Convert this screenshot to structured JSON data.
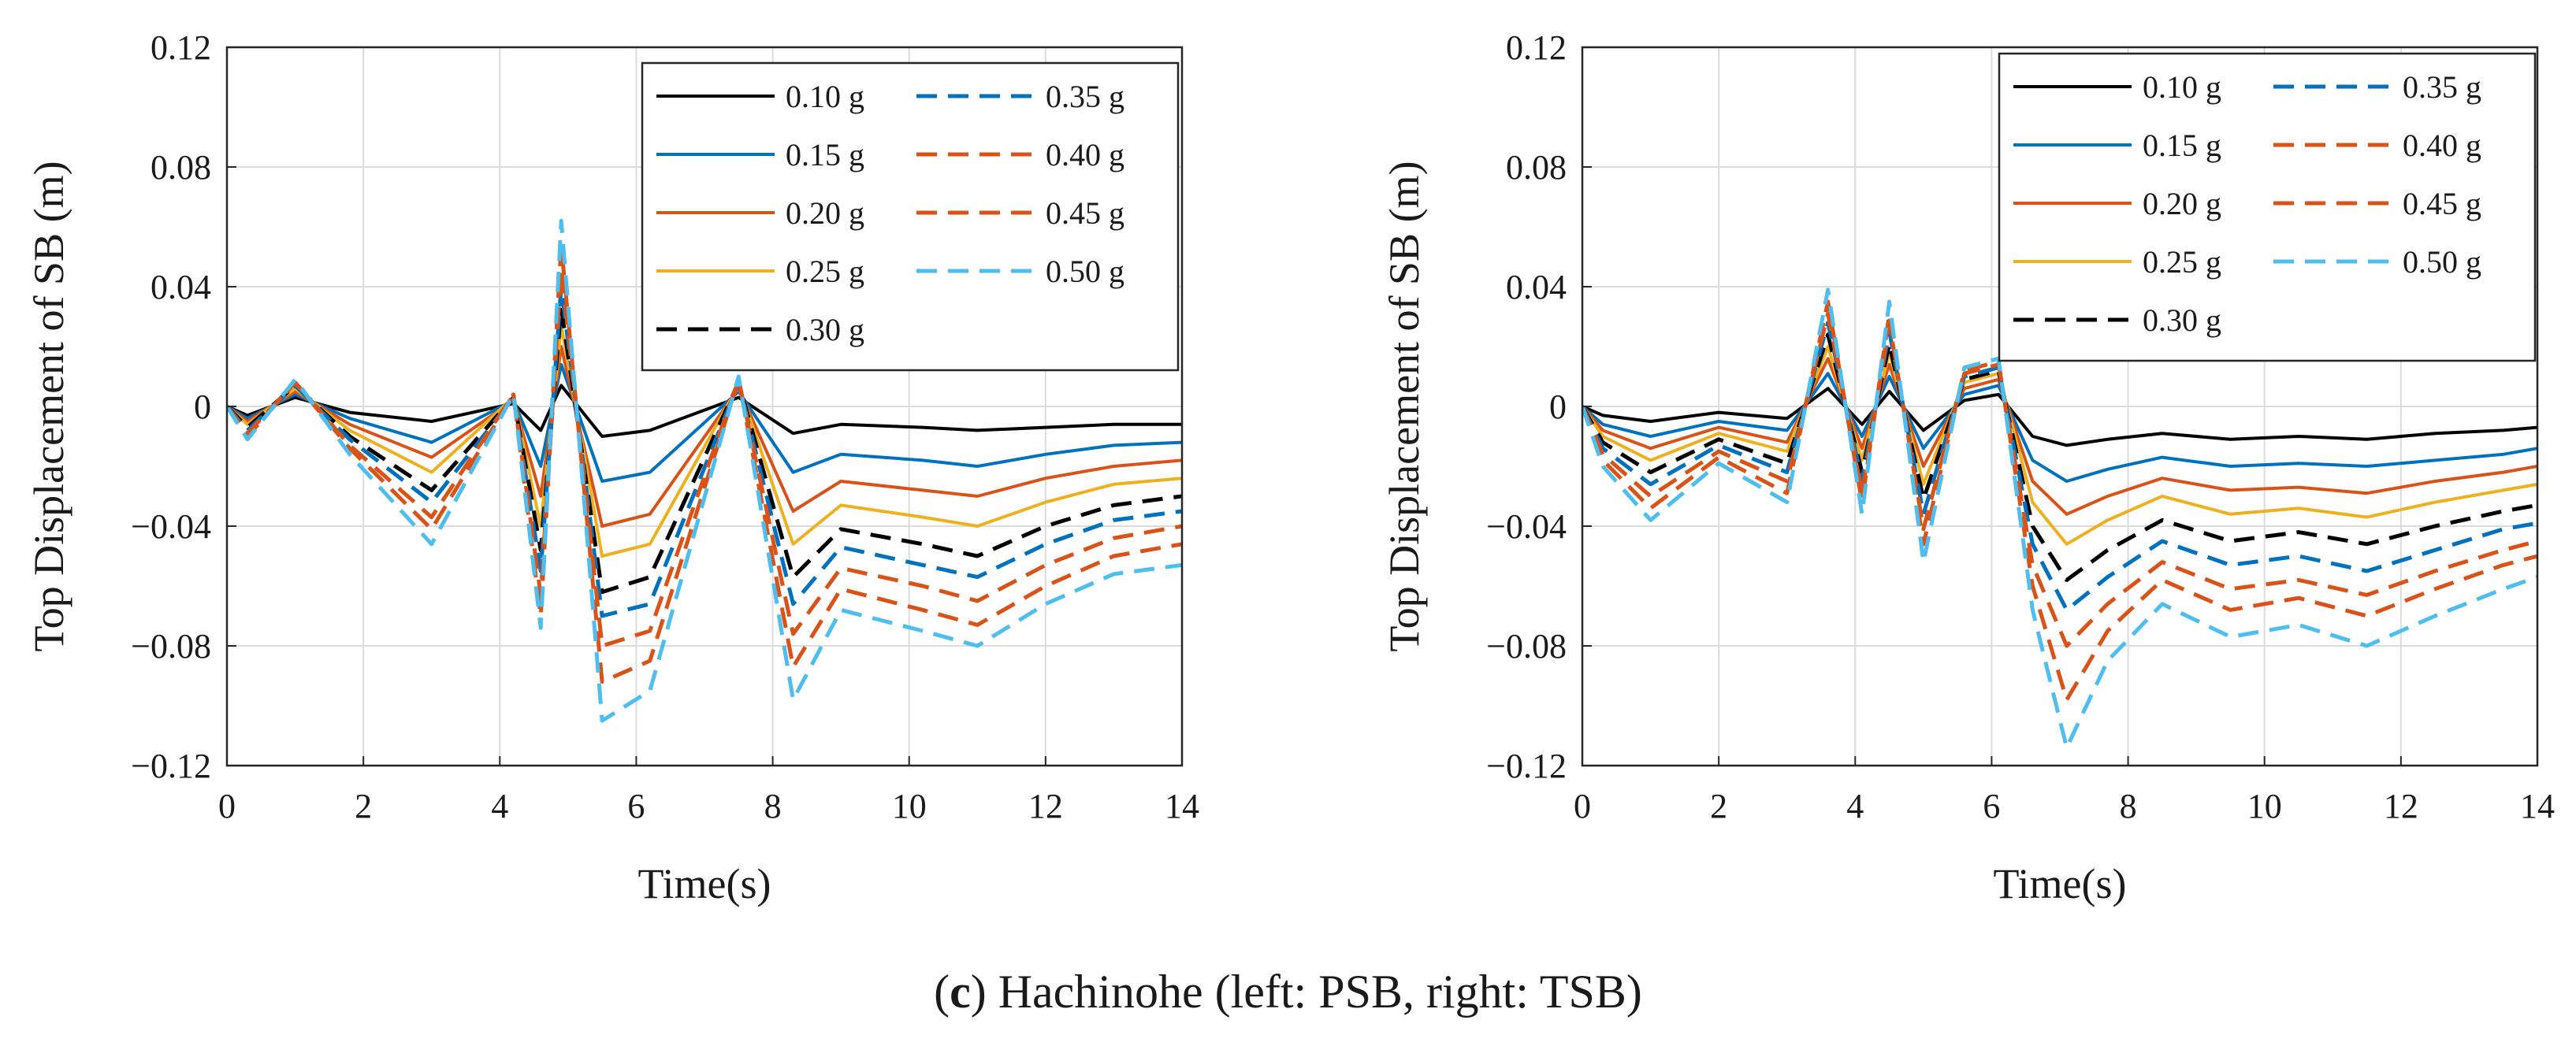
{
  "caption": {
    "open": "(",
    "letter": "c",
    "close": ")",
    "text": " Hachinohe (left: PSB, right: TSB)"
  },
  "colors": {
    "0.10 g": "#000000",
    "0.15 g": "#0072bd",
    "0.20 g": "#d95319",
    "0.25 g": "#edb120",
    "0.30 g": "#000000",
    "0.35 g": "#0072bd",
    "0.40 g": "#d95319",
    "0.45 g": "#d95319",
    "0.50 g": "#4dbeee"
  },
  "chart_data": [
    {
      "type": "line",
      "panel": "left",
      "xlabel": "Time(s)",
      "ylabel": "Top Displacement of SB (m)",
      "xlim": [
        0,
        14
      ],
      "ylim": [
        -0.12,
        0.12
      ],
      "xticks": [
        0,
        2,
        4,
        6,
        8,
        10,
        12,
        14
      ],
      "yticks": [
        0.12,
        0.08,
        0.04,
        0,
        -0.04,
        -0.08,
        -0.12
      ],
      "ytick_labels": [
        "0.12",
        "0.08",
        "0.04",
        "0",
        "−0.04",
        "−0.08",
        "−0.12"
      ],
      "grid": true,
      "legend_position": "top-right",
      "series": [
        {
          "name": "0.10 g",
          "style": "solid",
          "x": [
            0,
            0.3,
            1,
            1.8,
            3,
            4.2,
            4.6,
            4.9,
            5.5,
            6.2,
            7.5,
            8.3,
            9,
            10.2,
            11,
            12,
            13,
            14
          ],
          "y": [
            0,
            -0.003,
            0.003,
            -0.002,
            -0.005,
            0.001,
            -0.008,
            0.007,
            -0.01,
            -0.008,
            0.003,
            -0.009,
            -0.006,
            -0.007,
            -0.008,
            -0.007,
            -0.006,
            -0.006
          ]
        },
        {
          "name": "0.15 g",
          "style": "solid",
          "x": [
            0,
            0.3,
            1,
            1.8,
            3,
            4.2,
            4.6,
            4.9,
            5.5,
            6.2,
            7.5,
            8.3,
            9,
            10.2,
            11,
            12,
            13,
            14
          ],
          "y": [
            0,
            -0.004,
            0.004,
            -0.004,
            -0.012,
            0.002,
            -0.02,
            0.014,
            -0.025,
            -0.022,
            0.005,
            -0.022,
            -0.016,
            -0.018,
            -0.02,
            -0.016,
            -0.013,
            -0.012
          ]
        },
        {
          "name": "0.20 g",
          "style": "solid",
          "x": [
            0,
            0.3,
            1,
            1.8,
            3,
            4.2,
            4.6,
            4.9,
            5.5,
            6.2,
            7.5,
            8.3,
            9,
            10.2,
            11,
            12,
            13,
            14
          ],
          "y": [
            0,
            -0.005,
            0.005,
            -0.006,
            -0.017,
            0.002,
            -0.03,
            0.02,
            -0.04,
            -0.036,
            0.006,
            -0.035,
            -0.025,
            -0.028,
            -0.03,
            -0.024,
            -0.02,
            -0.018
          ]
        },
        {
          "name": "0.25 g",
          "style": "solid",
          "x": [
            0,
            0.3,
            1,
            1.8,
            3,
            4.2,
            4.6,
            4.9,
            5.5,
            6.2,
            7.5,
            8.3,
            9,
            10.2,
            11,
            12,
            13,
            14
          ],
          "y": [
            0,
            -0.006,
            0.006,
            -0.008,
            -0.022,
            0.003,
            -0.04,
            0.027,
            -0.05,
            -0.046,
            0.007,
            -0.046,
            -0.033,
            -0.037,
            -0.04,
            -0.032,
            -0.026,
            -0.024
          ]
        },
        {
          "name": "0.30 g",
          "style": "dashed",
          "x": [
            0,
            0.3,
            1,
            1.8,
            3,
            4.2,
            4.6,
            4.9,
            5.5,
            6.2,
            7.5,
            8.3,
            9,
            10.2,
            11,
            12,
            13,
            14
          ],
          "y": [
            0,
            -0.007,
            0.007,
            -0.01,
            -0.028,
            0.003,
            -0.048,
            0.033,
            -0.062,
            -0.057,
            0.008,
            -0.057,
            -0.041,
            -0.046,
            -0.05,
            -0.04,
            -0.033,
            -0.03
          ]
        },
        {
          "name": "0.35 g",
          "style": "dashed",
          "x": [
            0,
            0.3,
            1,
            1.8,
            3,
            4.2,
            4.6,
            4.9,
            5.5,
            6.2,
            7.5,
            8.3,
            9,
            10.2,
            11,
            12,
            13,
            14
          ],
          "y": [
            0,
            -0.008,
            0.007,
            -0.011,
            -0.032,
            0.003,
            -0.055,
            0.04,
            -0.07,
            -0.066,
            0.008,
            -0.066,
            -0.047,
            -0.053,
            -0.057,
            -0.046,
            -0.038,
            -0.035
          ]
        },
        {
          "name": "0.40 g",
          "style": "dashed",
          "x": [
            0,
            0.3,
            1,
            1.8,
            3,
            4.2,
            4.6,
            4.9,
            5.5,
            6.2,
            7.5,
            8.3,
            9,
            10.2,
            11,
            12,
            13,
            14
          ],
          "y": [
            0,
            -0.009,
            0.008,
            -0.013,
            -0.037,
            0.004,
            -0.063,
            0.046,
            -0.08,
            -0.075,
            0.009,
            -0.076,
            -0.054,
            -0.06,
            -0.065,
            -0.053,
            -0.044,
            -0.04
          ]
        },
        {
          "name": "0.45 g",
          "style": "dashed",
          "x": [
            0,
            0.3,
            1,
            1.8,
            3,
            4.2,
            4.6,
            4.9,
            5.5,
            6.2,
            7.5,
            8.3,
            9,
            10.2,
            11,
            12,
            13,
            14
          ],
          "y": [
            0,
            -0.01,
            0.008,
            -0.014,
            -0.041,
            0.004,
            -0.07,
            0.054,
            -0.092,
            -0.085,
            0.009,
            -0.087,
            -0.061,
            -0.068,
            -0.073,
            -0.06,
            -0.05,
            -0.046
          ]
        },
        {
          "name": "0.50 g",
          "style": "dashed",
          "x": [
            0,
            0.3,
            1,
            1.8,
            3,
            4.2,
            4.6,
            4.9,
            5.5,
            6.2,
            7.5,
            8.3,
            9,
            10.2,
            11,
            12,
            13,
            14
          ],
          "y": [
            0,
            -0.011,
            0.009,
            -0.016,
            -0.046,
            0.004,
            -0.074,
            0.062,
            -0.105,
            -0.095,
            0.01,
            -0.098,
            -0.068,
            -0.075,
            -0.08,
            -0.066,
            -0.056,
            -0.053
          ]
        }
      ]
    },
    {
      "type": "line",
      "panel": "right",
      "xlabel": "Time(s)",
      "ylabel": "Top Displacement of SB (m)",
      "xlim": [
        0,
        14
      ],
      "ylim": [
        -0.12,
        0.12
      ],
      "xticks": [
        0,
        2,
        4,
        6,
        8,
        10,
        12,
        14
      ],
      "yticks": [
        0.12,
        0.08,
        0.04,
        0,
        -0.04,
        -0.08,
        -0.12
      ],
      "ytick_labels": [
        "0.12",
        "0.08",
        "0.04",
        "0",
        "−0.04",
        "−0.08",
        "−0.12"
      ],
      "grid": true,
      "legend_position": "top-right",
      "series": [
        {
          "name": "0.10 g",
          "style": "solid",
          "x": [
            0,
            0.3,
            1,
            2,
            3,
            3.6,
            4.1,
            4.5,
            5,
            5.6,
            6.1,
            6.6,
            7.1,
            7.7,
            8.5,
            9.5,
            10.5,
            11.5,
            12.5,
            13.5,
            14
          ],
          "y": [
            0,
            -0.003,
            -0.005,
            -0.002,
            -0.004,
            0.006,
            -0.006,
            0.005,
            -0.008,
            0.002,
            0.004,
            -0.01,
            -0.013,
            -0.011,
            -0.009,
            -0.011,
            -0.01,
            -0.011,
            -0.009,
            -0.008,
            -0.007
          ]
        },
        {
          "name": "0.15 g",
          "style": "solid",
          "x": [
            0,
            0.3,
            1,
            2,
            3,
            3.6,
            4.1,
            4.5,
            5,
            5.6,
            6.1,
            6.6,
            7.1,
            7.7,
            8.5,
            9.5,
            10.5,
            11.5,
            12.5,
            13.5,
            14
          ],
          "y": [
            0,
            -0.006,
            -0.01,
            -0.005,
            -0.008,
            0.011,
            -0.01,
            0.01,
            -0.014,
            0.004,
            0.007,
            -0.018,
            -0.025,
            -0.021,
            -0.017,
            -0.02,
            -0.019,
            -0.02,
            -0.018,
            -0.016,
            -0.014
          ]
        },
        {
          "name": "0.20 g",
          "style": "solid",
          "x": [
            0,
            0.3,
            1,
            2,
            3,
            3.6,
            4.1,
            4.5,
            5,
            5.6,
            6.1,
            6.6,
            7.1,
            7.7,
            8.5,
            9.5,
            10.5,
            11.5,
            12.5,
            13.5,
            14
          ],
          "y": [
            0,
            -0.008,
            -0.014,
            -0.007,
            -0.012,
            0.016,
            -0.014,
            0.014,
            -0.02,
            0.006,
            0.009,
            -0.025,
            -0.036,
            -0.03,
            -0.024,
            -0.028,
            -0.027,
            -0.029,
            -0.025,
            -0.022,
            -0.02
          ]
        },
        {
          "name": "0.25 g",
          "style": "solid",
          "x": [
            0,
            0.3,
            1,
            2,
            3,
            3.6,
            4.1,
            4.5,
            5,
            5.6,
            6.1,
            6.6,
            7.1,
            7.7,
            8.5,
            9.5,
            10.5,
            11.5,
            12.5,
            13.5,
            14
          ],
          "y": [
            0,
            -0.01,
            -0.018,
            -0.009,
            -0.015,
            0.02,
            -0.018,
            0.018,
            -0.026,
            0.008,
            0.011,
            -0.032,
            -0.046,
            -0.038,
            -0.03,
            -0.036,
            -0.034,
            -0.037,
            -0.032,
            -0.028,
            -0.026
          ]
        },
        {
          "name": "0.30 g",
          "style": "dashed",
          "x": [
            0,
            0.3,
            1,
            2,
            3,
            3.6,
            4.1,
            4.5,
            5,
            5.6,
            6.1,
            6.6,
            7.1,
            7.7,
            8.5,
            9.5,
            10.5,
            11.5,
            12.5,
            13.5,
            14
          ],
          "y": [
            0,
            -0.012,
            -0.022,
            -0.011,
            -0.019,
            0.024,
            -0.022,
            0.021,
            -0.031,
            0.009,
            0.012,
            -0.04,
            -0.058,
            -0.048,
            -0.038,
            -0.045,
            -0.042,
            -0.046,
            -0.04,
            -0.035,
            -0.033
          ]
        },
        {
          "name": "0.35 g",
          "style": "dashed",
          "x": [
            0,
            0.3,
            1,
            2,
            3,
            3.6,
            4.1,
            4.5,
            5,
            5.6,
            6.1,
            6.6,
            7.1,
            7.7,
            8.5,
            9.5,
            10.5,
            11.5,
            12.5,
            13.5,
            14
          ],
          "y": [
            0,
            -0.014,
            -0.026,
            -0.013,
            -0.022,
            0.028,
            -0.025,
            0.025,
            -0.036,
            0.01,
            0.013,
            -0.046,
            -0.068,
            -0.057,
            -0.045,
            -0.053,
            -0.05,
            -0.055,
            -0.048,
            -0.041,
            -0.039
          ]
        },
        {
          "name": "0.40 g",
          "style": "dashed",
          "x": [
            0,
            0.3,
            1,
            2,
            3,
            3.6,
            4.1,
            4.5,
            5,
            5.6,
            6.1,
            6.6,
            7.1,
            7.7,
            8.5,
            9.5,
            10.5,
            11.5,
            12.5,
            13.5,
            14
          ],
          "y": [
            0,
            -0.016,
            -0.03,
            -0.015,
            -0.025,
            0.031,
            -0.029,
            0.028,
            -0.041,
            0.011,
            0.014,
            -0.053,
            -0.08,
            -0.066,
            -0.052,
            -0.061,
            -0.058,
            -0.063,
            -0.055,
            -0.048,
            -0.045
          ]
        },
        {
          "name": "0.45 g",
          "style": "dashed",
          "x": [
            0,
            0.3,
            1,
            2,
            3,
            3.6,
            4.1,
            4.5,
            5,
            5.6,
            6.1,
            6.6,
            7.1,
            7.7,
            8.5,
            9.5,
            10.5,
            11.5,
            12.5,
            13.5,
            14
          ],
          "y": [
            0,
            -0.018,
            -0.034,
            -0.017,
            -0.029,
            0.035,
            -0.032,
            0.031,
            -0.046,
            0.012,
            0.015,
            -0.06,
            -0.098,
            -0.075,
            -0.058,
            -0.068,
            -0.064,
            -0.07,
            -0.061,
            -0.053,
            -0.05
          ]
        },
        {
          "name": "0.50 g",
          "style": "dashed",
          "x": [
            0,
            0.3,
            1,
            2,
            3,
            3.6,
            4.1,
            4.5,
            5,
            5.6,
            6.1,
            6.6,
            7.1,
            7.7,
            8.5,
            9.5,
            10.5,
            11.5,
            12.5,
            13.5,
            14
          ],
          "y": [
            0,
            -0.02,
            -0.038,
            -0.019,
            -0.032,
            0.039,
            -0.036,
            0.035,
            -0.052,
            0.013,
            0.016,
            -0.068,
            -0.114,
            -0.085,
            -0.066,
            -0.077,
            -0.073,
            -0.08,
            -0.07,
            -0.061,
            -0.057
          ]
        }
      ]
    }
  ]
}
